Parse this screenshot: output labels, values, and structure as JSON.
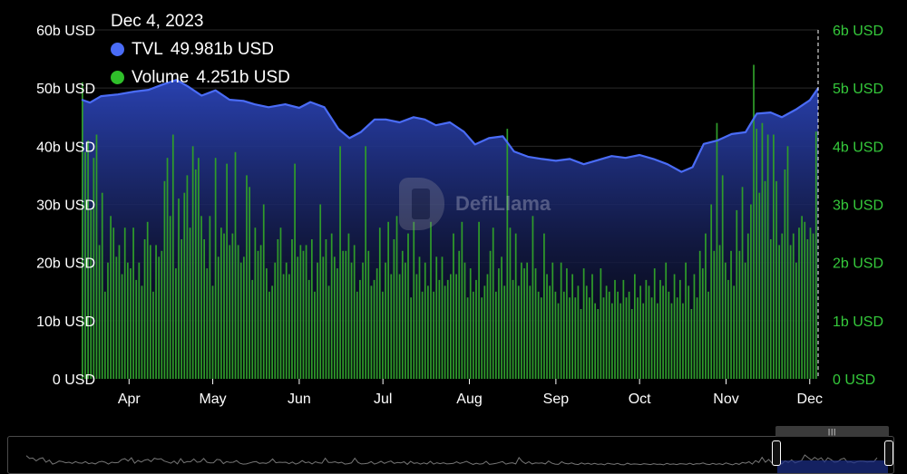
{
  "tooltip": {
    "date": "Dec 4, 2023",
    "tvl_label": "TVL",
    "tvl_value": "49.981b USD",
    "volume_label": "Volume",
    "volume_value": "4.251b USD"
  },
  "watermark": "DefiLlama",
  "colors": {
    "tvl_line": "#4a6cf7",
    "tvl_fill_top": "#2b44b8",
    "volume_bar": "#2f9c2a",
    "volume_axis": "#35c93b",
    "background": "#000000"
  },
  "icons": {
    "tvl_dot": "blue-dot-icon",
    "volume_dot": "green-dot-icon",
    "watermark_logo": "defillama-logo-icon",
    "brush_grip": "grip-icon"
  },
  "chart_data": {
    "type": "area+bar",
    "x_start": "2023-03-15",
    "x_end": "2023-12-04",
    "x_tick_labels": [
      "Apr",
      "May",
      "Jun",
      "Jul",
      "Aug",
      "Sep",
      "Oct",
      "Nov",
      "Dec"
    ],
    "x_tick_dates": [
      "2023-04-01",
      "2023-05-01",
      "2023-06-01",
      "2023-07-01",
      "2023-08-01",
      "2023-09-01",
      "2023-10-01",
      "2023-11-01",
      "2023-12-01"
    ],
    "left_axis": {
      "ticks": [
        "0 USD",
        "10b USD",
        "20b USD",
        "30b USD",
        "40b USD",
        "50b USD",
        "60b USD"
      ],
      "ylim": [
        0,
        60
      ]
    },
    "right_axis": {
      "ticks": [
        "0 USD",
        "1b USD",
        "2b USD",
        "3b USD",
        "4b USD",
        "5b USD",
        "6b USD"
      ],
      "ylim": [
        0,
        6
      ]
    },
    "grid": true,
    "series": [
      {
        "name": "TVL",
        "type": "area",
        "axis": "left",
        "unit": "b USD",
        "points": [
          [
            "2023-03-15",
            48.0
          ],
          [
            "2023-03-18",
            47.5
          ],
          [
            "2023-03-22",
            48.6
          ],
          [
            "2023-03-28",
            48.9
          ],
          [
            "2023-04-03",
            49.4
          ],
          [
            "2023-04-08",
            49.7
          ],
          [
            "2023-04-13",
            50.6
          ],
          [
            "2023-04-18",
            51.4
          ],
          [
            "2023-04-22",
            50.3
          ],
          [
            "2023-04-27",
            48.7
          ],
          [
            "2023-05-02",
            49.6
          ],
          [
            "2023-05-07",
            48.0
          ],
          [
            "2023-05-12",
            47.8
          ],
          [
            "2023-05-16",
            47.2
          ],
          [
            "2023-05-21",
            46.7
          ],
          [
            "2023-05-27",
            47.2
          ],
          [
            "2023-06-01",
            46.6
          ],
          [
            "2023-06-05",
            47.6
          ],
          [
            "2023-06-10",
            46.7
          ],
          [
            "2023-06-15",
            43.0
          ],
          [
            "2023-06-19",
            41.4
          ],
          [
            "2023-06-23",
            42.4
          ],
          [
            "2023-06-28",
            44.6
          ],
          [
            "2023-07-02",
            44.6
          ],
          [
            "2023-07-07",
            44.1
          ],
          [
            "2023-07-12",
            45.0
          ],
          [
            "2023-07-16",
            44.6
          ],
          [
            "2023-07-20",
            43.6
          ],
          [
            "2023-07-25",
            44.1
          ],
          [
            "2023-07-30",
            42.5
          ],
          [
            "2023-08-03",
            40.3
          ],
          [
            "2023-08-08",
            41.4
          ],
          [
            "2023-08-13",
            41.7
          ],
          [
            "2023-08-17",
            39.1
          ],
          [
            "2023-08-22",
            38.2
          ],
          [
            "2023-08-27",
            37.8
          ],
          [
            "2023-09-01",
            37.5
          ],
          [
            "2023-09-06",
            37.8
          ],
          [
            "2023-09-11",
            36.9
          ],
          [
            "2023-09-16",
            37.6
          ],
          [
            "2023-09-21",
            38.3
          ],
          [
            "2023-09-26",
            38.0
          ],
          [
            "2023-10-01",
            38.5
          ],
          [
            "2023-10-06",
            37.8
          ],
          [
            "2023-10-11",
            36.9
          ],
          [
            "2023-10-16",
            35.6
          ],
          [
            "2023-10-20",
            36.4
          ],
          [
            "2023-10-24",
            40.4
          ],
          [
            "2023-10-29",
            41.0
          ],
          [
            "2023-11-03",
            42.1
          ],
          [
            "2023-11-08",
            42.4
          ],
          [
            "2023-11-12",
            45.6
          ],
          [
            "2023-11-17",
            45.8
          ],
          [
            "2023-11-21",
            45.0
          ],
          [
            "2023-11-26",
            46.3
          ],
          [
            "2023-12-01",
            47.9
          ],
          [
            "2023-12-04",
            49.981
          ]
        ]
      },
      {
        "name": "Volume",
        "type": "bar",
        "axis": "right",
        "unit": "b USD",
        "daily_values": [
          5.1,
          3.9,
          4.1,
          2.9,
          3.8,
          4.2,
          2.3,
          3.2,
          1.5,
          2.0,
          2.8,
          2.6,
          2.1,
          2.3,
          1.8,
          2.6,
          2.0,
          1.9,
          2.6,
          1.7,
          2.0,
          1.6,
          2.4,
          2.7,
          2.3,
          1.5,
          2.3,
          2.1,
          2.2,
          3.4,
          3.8,
          2.8,
          4.2,
          1.9,
          3.1,
          2.4,
          3.2,
          3.5,
          2.6,
          4.0,
          3.6,
          3.8,
          2.8,
          2.4,
          1.9,
          2.8,
          1.6,
          3.8,
          2.1,
          2.6,
          2.5,
          3.7,
          2.3,
          2.5,
          3.9,
          2.3,
          2.0,
          2.1,
          3.5,
          3.3,
          1.7,
          2.6,
          2.2,
          2.3,
          3.0,
          1.9,
          1.5,
          1.6,
          2.0,
          2.4,
          2.6,
          1.8,
          2.0,
          1.8,
          2.4,
          3.7,
          2.1,
          2.3,
          2.2,
          2.3,
          1.7,
          2.4,
          1.5,
          2.0,
          3.0,
          2.1,
          2.4,
          1.6,
          2.5,
          2.1,
          1.9,
          4.0,
          2.2,
          2.2,
          2.5,
          2.0,
          2.3,
          1.5,
          1.7,
          2.0,
          4.0,
          2.2,
          1.6,
          1.7,
          1.9,
          2.6,
          1.5,
          2.0,
          2.7,
          1.8,
          2.4,
          2.8,
          1.8,
          2.2,
          2.0,
          2.5,
          1.4,
          2.7,
          1.8,
          2.1,
          1.5,
          2.0,
          1.6,
          2.7,
          1.5,
          2.1,
          1.7,
          2.1,
          1.6,
          1.7,
          1.8,
          2.5,
          1.8,
          2.2,
          2.7,
          2.0,
          1.4,
          1.9,
          1.5,
          1.7,
          2.7,
          1.4,
          1.6,
          1.8,
          2.2,
          2.6,
          1.5,
          1.9,
          2.1,
          1.6,
          4.3,
          2.6,
          1.7,
          2.5,
          1.6,
          2.0,
          1.9,
          2.0,
          1.6,
          2.8,
          1.9,
          1.5,
          1.4,
          2.5,
          1.8,
          1.6,
          2.0,
          1.5,
          1.3,
          2.0,
          1.5,
          1.9,
          1.4,
          1.8,
          1.4,
          1.6,
          1.2,
          1.9,
          1.6,
          1.4,
          1.8,
          1.3,
          1.2,
          1.9,
          1.4,
          1.6,
          1.5,
          1.3,
          1.7,
          1.5,
          1.3,
          1.7,
          1.4,
          1.5,
          1.2,
          1.8,
          1.4,
          1.6,
          1.3,
          1.7,
          1.6,
          1.4,
          1.9,
          1.3,
          1.7,
          1.6,
          2.0,
          1.5,
          1.3,
          1.8,
          1.4,
          1.7,
          1.3,
          2.0,
          1.6,
          1.2,
          1.8,
          1.4,
          2.2,
          1.9,
          2.5,
          1.5,
          3.0,
          2.2,
          4.4,
          2.3,
          3.5,
          2.0,
          1.7,
          2.2,
          1.6,
          2.9,
          2.2,
          3.3,
          2.0,
          2.5,
          3.0,
          5.4,
          4.3,
          3.2,
          4.4,
          3.4,
          4.2,
          2.4,
          4.2,
          3.4,
          2.3,
          2.5,
          3.6,
          4.0,
          2.3,
          2.5,
          2.0,
          2.6,
          2.8,
          2.7,
          2.4,
          2.6,
          2.5,
          4.251
        ]
      }
    ]
  }
}
